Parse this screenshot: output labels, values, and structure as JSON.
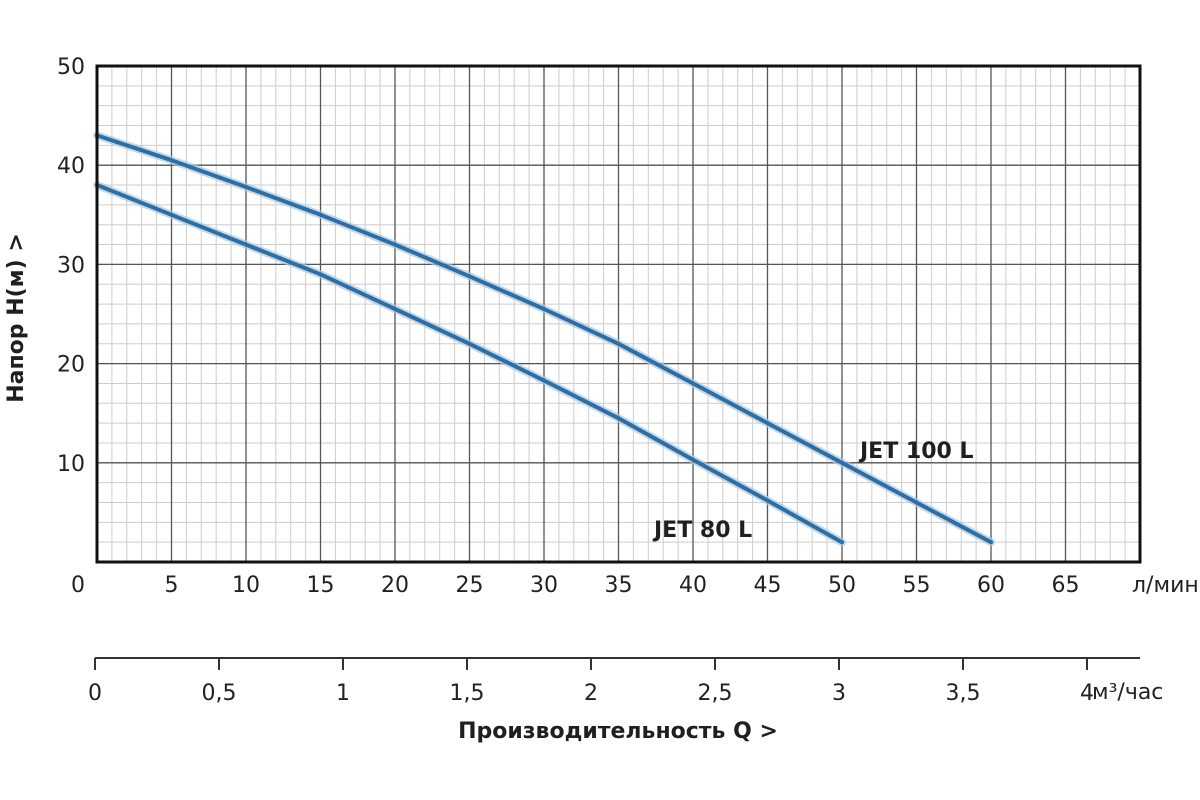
{
  "chart_data": {
    "type": "line",
    "ylabel": "Напор   H(м)  >",
    "xlabel": "Производительность Q  >",
    "x_unit": "л/мин",
    "x2_unit": "м³/час",
    "xlim": [
      0,
      70
    ],
    "ylim": [
      0,
      50
    ],
    "x_ticks": [
      0,
      5,
      10,
      15,
      20,
      25,
      30,
      35,
      40,
      45,
      50,
      55,
      60,
      65
    ],
    "y_ticks": [
      10,
      20,
      30,
      40,
      50
    ],
    "x2_ticks": [
      "0",
      "0,5",
      "1",
      "1,5",
      "2",
      "2,5",
      "3",
      "3,5",
      "4"
    ],
    "grid": true,
    "series": [
      {
        "name": "JET 100 L",
        "color": "#2e6fa3",
        "x": [
          0,
          5,
          10,
          15,
          20,
          25,
          30,
          35,
          40,
          45,
          50,
          55,
          60
        ],
        "y": [
          43,
          40.5,
          37.8,
          35,
          32,
          28.8,
          25.5,
          22,
          18,
          14,
          10,
          6,
          2
        ]
      },
      {
        "name": "JET 80 L",
        "color": "#2e6fa3",
        "x": [
          0,
          5,
          10,
          15,
          20,
          25,
          30,
          35,
          40,
          45,
          50
        ],
        "y": [
          38,
          35,
          32,
          29,
          25.5,
          22,
          18.3,
          14.5,
          10.3,
          6.2,
          2
        ]
      }
    ]
  }
}
